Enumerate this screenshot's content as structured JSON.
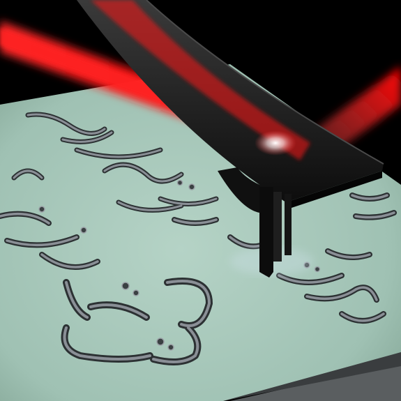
{
  "scene": {
    "subject": "afm-cantilever-tip-over-patterned-surface",
    "colors": {
      "background": "#000000",
      "surface": "#9fc1b3",
      "surface_shadow": "#6e9084",
      "laser": "#ff1a1a",
      "cantilever": "#1a1a1a",
      "glyph_outline": "#2c3133",
      "glyph_fill": "#8a8f96",
      "substrate_edge": "#5a5e60"
    },
    "icons": [
      "laser-beam-icon",
      "cantilever-icon",
      "tip-icon"
    ]
  }
}
